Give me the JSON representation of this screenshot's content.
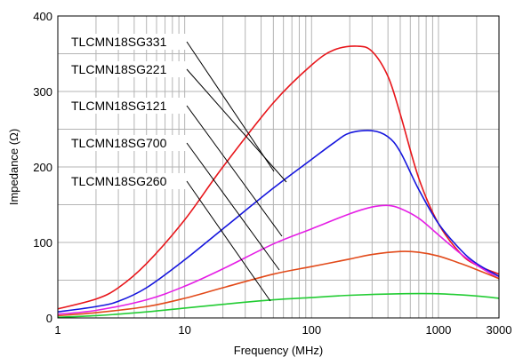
{
  "chart_data": {
    "type": "line",
    "title": "",
    "xlabel": "Frequency (MHz)",
    "ylabel": "Impedance (Ω)",
    "x_scale": "log",
    "xlim": [
      1,
      3000
    ],
    "ylim": [
      0,
      400
    ],
    "grid": true,
    "x_tick_labels": [
      "1",
      "10",
      "100",
      "1000",
      "3000"
    ],
    "y_tick_labels": [
      "0",
      "100",
      "200",
      "300",
      "400"
    ],
    "x_ticks": [
      1,
      10,
      100,
      1000,
      3000
    ],
    "y_ticks": [
      0,
      100,
      200,
      300,
      400
    ],
    "series": [
      {
        "name": "TLCMN18SG331",
        "color": "#e8161b",
        "label_anchor": [
          45,
          215
        ],
        "x": [
          1,
          2,
          3,
          5,
          10,
          20,
          50,
          100,
          150,
          230,
          300,
          400,
          500,
          700,
          1000,
          1500,
          2000,
          3000
        ],
        "y": [
          12,
          25,
          40,
          72,
          130,
          200,
          285,
          335,
          355,
          360,
          353,
          320,
          270,
          185,
          125,
          85,
          70,
          58
        ]
      },
      {
        "name": "TLCMN18SG221",
        "color": "#1515dd",
        "label_anchor": [
          58,
          160
        ],
        "x": [
          1,
          2,
          3,
          5,
          10,
          20,
          50,
          100,
          150,
          200,
          300,
          400,
          500,
          700,
          1000,
          1500,
          2000,
          3000
        ],
        "y": [
          8,
          15,
          22,
          40,
          77,
          118,
          172,
          210,
          232,
          245,
          248,
          240,
          220,
          170,
          125,
          90,
          72,
          55
        ]
      },
      {
        "name": "TLCMN18SG121",
        "color": "#e51ee5",
        "label_anchor": [
          52,
          110
        ],
        "x": [
          1,
          2,
          5,
          10,
          20,
          50,
          100,
          200,
          300,
          400,
          500,
          700,
          1000,
          1500,
          2000,
          3000
        ],
        "y": [
          5,
          10,
          24,
          42,
          65,
          98,
          118,
          138,
          147,
          149,
          145,
          132,
          110,
          85,
          70,
          52
        ]
      },
      {
        "name": "TLCMN18SG700",
        "color": "#e24a1a",
        "label_anchor": [
          50,
          65
        ],
        "x": [
          1,
          2,
          5,
          10,
          20,
          50,
          100,
          200,
          300,
          500,
          700,
          1000,
          1500,
          2000,
          3000
        ],
        "y": [
          3,
          7,
          15,
          26,
          40,
          58,
          68,
          78,
          84,
          88,
          87,
          82,
          72,
          64,
          52
        ]
      },
      {
        "name": "TLCMN18SG260",
        "color": "#22cc33",
        "label_anchor": [
          50,
          20
        ],
        "x": [
          1,
          2,
          5,
          10,
          20,
          50,
          100,
          200,
          500,
          1000,
          2000,
          3000
        ],
        "y": [
          1,
          3,
          8,
          13,
          18,
          24,
          27,
          30,
          32,
          32,
          29,
          26
        ]
      }
    ]
  }
}
